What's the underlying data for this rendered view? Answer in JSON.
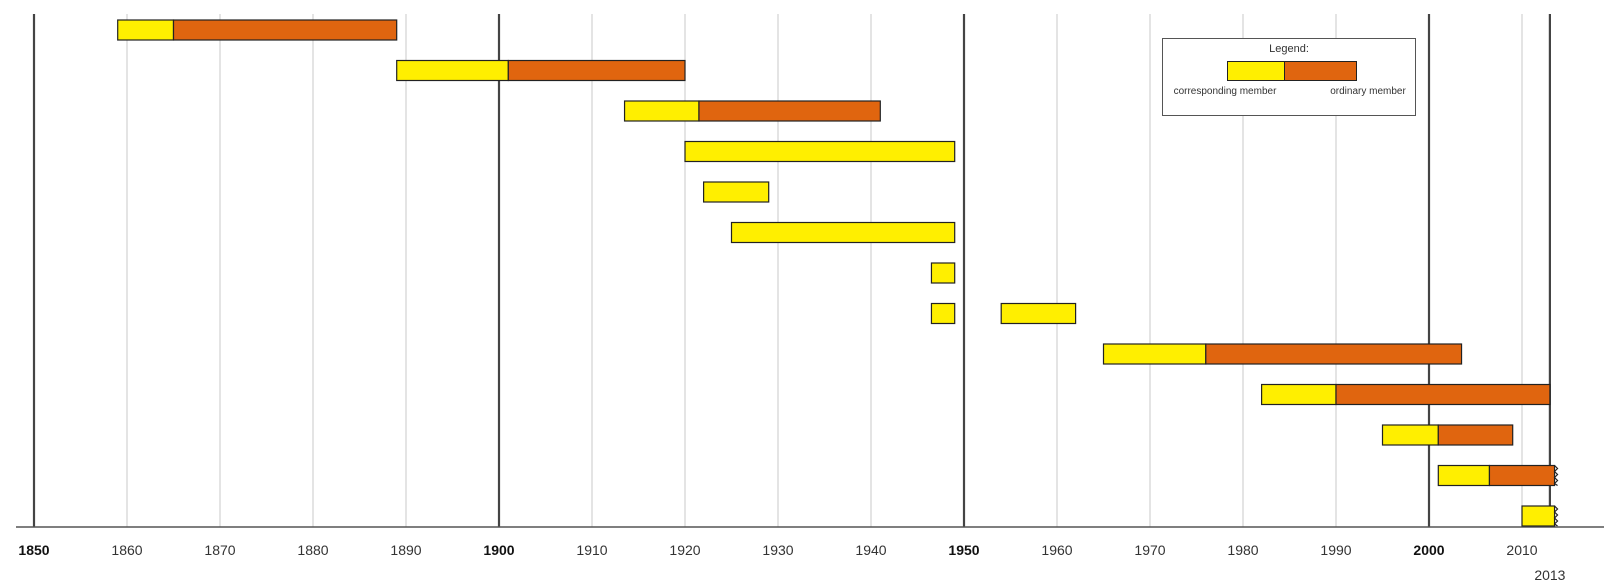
{
  "chart_data": {
    "type": "timeline",
    "x_axis": {
      "ticks": [
        1850,
        1860,
        1870,
        1880,
        1890,
        1900,
        1910,
        1920,
        1930,
        1940,
        1950,
        1960,
        1970,
        1980,
        1990,
        2000,
        2010
      ],
      "bold_ticks": [
        1850,
        1900,
        1950,
        2000
      ],
      "extra_label": "2013",
      "major_lines": [
        1850,
        1900,
        1950,
        2000,
        2013
      ],
      "grid": true
    },
    "legend": {
      "title": "Legend:",
      "corresponding_label": "corresponding member",
      "ordinary_label": "ordinary member",
      "position": "top-right"
    },
    "colors": {
      "corresponding": "#ffef00",
      "ordinary": "#e0650f"
    },
    "rows": [
      {
        "segments": [
          {
            "type": "corresponding",
            "start": 1859,
            "end": 1865
          },
          {
            "type": "ordinary",
            "start": 1865,
            "end": 1889
          }
        ]
      },
      {
        "segments": [
          {
            "type": "corresponding",
            "start": 1889,
            "end": 1901
          },
          {
            "type": "ordinary",
            "start": 1901,
            "end": 1920
          }
        ]
      },
      {
        "segments": [
          {
            "type": "corresponding",
            "start": 1913.5,
            "end": 1921.5
          },
          {
            "type": "ordinary",
            "start": 1921.5,
            "end": 1941
          }
        ]
      },
      {
        "segments": [
          {
            "type": "corresponding",
            "start": 1920,
            "end": 1949
          }
        ]
      },
      {
        "segments": [
          {
            "type": "corresponding",
            "start": 1922,
            "end": 1929
          }
        ]
      },
      {
        "segments": [
          {
            "type": "corresponding",
            "start": 1925,
            "end": 1949
          }
        ]
      },
      {
        "segments": [
          {
            "type": "corresponding",
            "start": 1946.5,
            "end": 1949
          }
        ]
      },
      {
        "segments": [
          {
            "type": "corresponding",
            "start": 1946.5,
            "end": 1949
          },
          {
            "type": "corresponding",
            "start": 1954,
            "end": 1962
          }
        ]
      },
      {
        "segments": [
          {
            "type": "corresponding",
            "start": 1965,
            "end": 1976
          },
          {
            "type": "ordinary",
            "start": 1976,
            "end": 2003.5
          }
        ]
      },
      {
        "segments": [
          {
            "type": "corresponding",
            "start": 1982,
            "end": 1990
          },
          {
            "type": "ordinary",
            "start": 1990,
            "end": 2013
          }
        ]
      },
      {
        "segments": [
          {
            "type": "corresponding",
            "start": 1995,
            "end": 2001
          },
          {
            "type": "ordinary",
            "start": 2001,
            "end": 2009
          }
        ]
      },
      {
        "segments": [
          {
            "type": "corresponding",
            "start": 2001,
            "end": 2006.5
          },
          {
            "type": "ordinary",
            "start": 2006.5,
            "end": 2013.5,
            "ongoing": true
          }
        ]
      },
      {
        "segments": [
          {
            "type": "corresponding",
            "start": 2010,
            "end": 2013.5,
            "ongoing": true
          }
        ]
      }
    ]
  }
}
